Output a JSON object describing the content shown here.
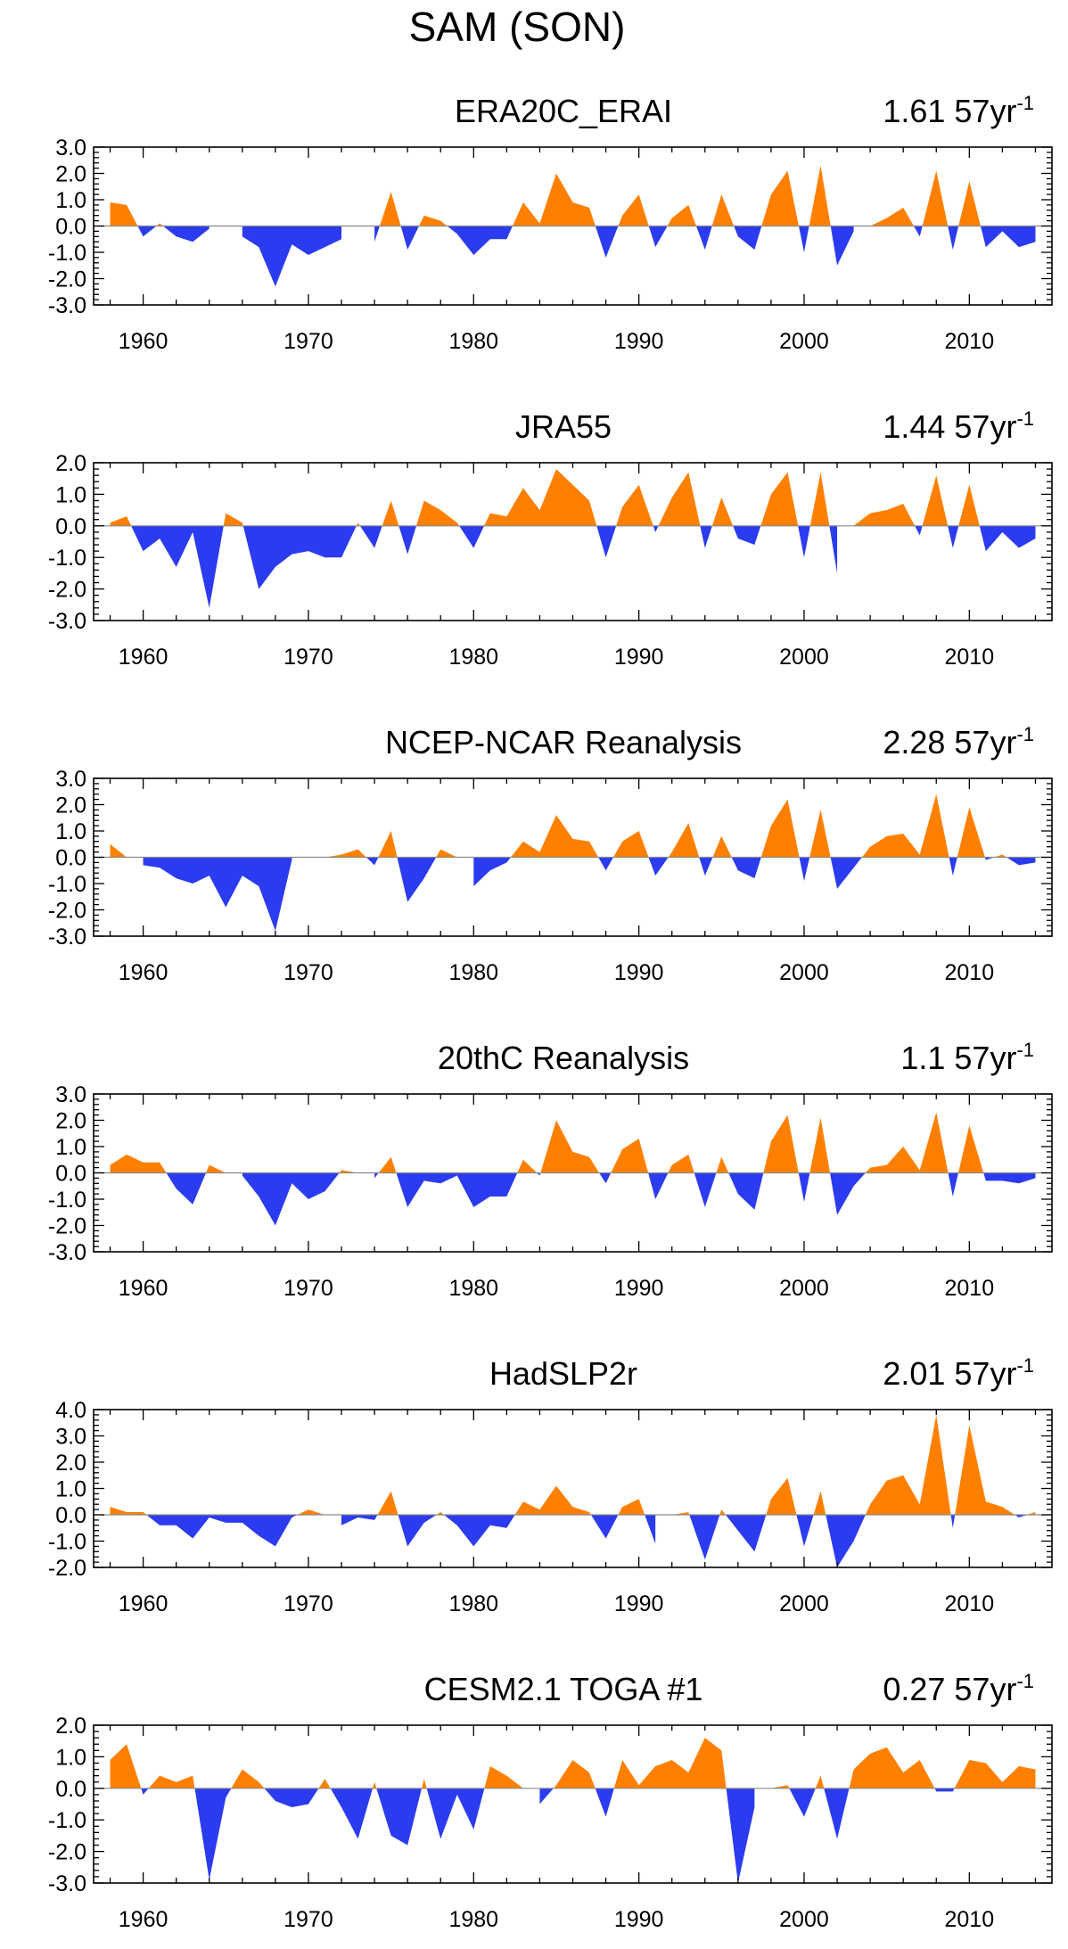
{
  "figure_title": "SAM (SON)",
  "colors": {
    "positive": "#FF8000",
    "negative": "#2B3BF0",
    "axis": "#000000"
  },
  "chart_data": [
    {
      "type": "area",
      "title": "ERA20C_ERAI",
      "trend_value": "1.61 57yr",
      "trend_exponent": "-1",
      "x": [
        1958,
        1959,
        1960,
        1961,
        1962,
        1963,
        1964,
        1965,
        1966,
        1967,
        1968,
        1969,
        1970,
        1971,
        1972,
        1973,
        1974,
        1975,
        1976,
        1977,
        1978,
        1979,
        1980,
        1981,
        1982,
        1983,
        1984,
        1985,
        1986,
        1987,
        1988,
        1989,
        1990,
        1991,
        1992,
        1993,
        1994,
        1995,
        1996,
        1997,
        1998,
        1999,
        2000,
        2001,
        2002,
        2003,
        2004,
        2005,
        2006,
        2007,
        2008,
        2009,
        2010,
        2011,
        2012,
        2013,
        2014
      ],
      "values": [
        0.9,
        0.8,
        -0.4,
        0.1,
        -0.4,
        -0.6,
        -0.1,
        0.0,
        -0.4,
        -0.8,
        -2.3,
        -0.7,
        -1.1,
        -0.8,
        -0.5,
        0.0,
        -0.6,
        1.3,
        -0.9,
        0.4,
        0.2,
        -0.3,
        -1.1,
        -0.5,
        -0.5,
        0.9,
        0.1,
        2.0,
        0.9,
        0.7,
        -1.2,
        0.4,
        1.2,
        -0.8,
        0.3,
        0.8,
        -0.9,
        1.2,
        -0.4,
        -0.9,
        1.2,
        2.1,
        -1.0,
        2.3,
        -1.5,
        -0.2,
        0.0,
        0.3,
        0.7,
        -0.4,
        2.1,
        -0.9,
        1.7,
        -0.8,
        -0.2,
        -0.8,
        -0.6
      ],
      "ylim": [
        -3.0,
        3.0
      ],
      "yticks": [
        "3.0",
        "2.0",
        "1.0",
        "0.0",
        "-1.0",
        "-2.0",
        "-3.0"
      ],
      "xlim": [
        1957,
        2015
      ],
      "xticks": [
        "1960",
        "1970",
        "1980",
        "1990",
        "2000",
        "2010"
      ]
    },
    {
      "type": "area",
      "title": "JRA55",
      "trend_value": "1.44 57yr",
      "trend_exponent": "-1",
      "x": [
        1958,
        1959,
        1960,
        1961,
        1962,
        1963,
        1964,
        1965,
        1966,
        1967,
        1968,
        1969,
        1970,
        1971,
        1972,
        1973,
        1974,
        1975,
        1976,
        1977,
        1978,
        1979,
        1980,
        1981,
        1982,
        1983,
        1984,
        1985,
        1986,
        1987,
        1988,
        1989,
        1990,
        1991,
        1992,
        1993,
        1994,
        1995,
        1996,
        1997,
        1998,
        1999,
        2000,
        2001,
        2002,
        2003,
        2004,
        2005,
        2006,
        2007,
        2008,
        2009,
        2010,
        2011,
        2012,
        2013,
        2014
      ],
      "values": [
        0.1,
        0.3,
        -0.8,
        -0.4,
        -1.3,
        -0.2,
        -2.6,
        0.4,
        0.1,
        -2.0,
        -1.3,
        -0.9,
        -0.8,
        -1.0,
        -1.0,
        0.1,
        -0.7,
        0.8,
        -0.9,
        0.8,
        0.5,
        0.1,
        -0.7,
        0.4,
        0.3,
        1.2,
        0.5,
        1.8,
        1.3,
        0.8,
        -1.0,
        0.6,
        1.3,
        -0.2,
        0.9,
        1.7,
        -0.7,
        0.9,
        -0.4,
        -0.6,
        1.0,
        1.7,
        -1.0,
        1.7,
        -1.5,
        0.0,
        0.4,
        0.5,
        0.7,
        -0.3,
        1.6,
        -0.7,
        1.3,
        -0.8,
        -0.2,
        -0.7,
        -0.4
      ],
      "ylim": [
        -3.0,
        2.0
      ],
      "yticks": [
        "2.0",
        "1.0",
        "0.0",
        "-1.0",
        "-2.0",
        "-3.0"
      ],
      "xlim": [
        1957,
        2015
      ],
      "xticks": [
        "1960",
        "1970",
        "1980",
        "1990",
        "2000",
        "2010"
      ]
    },
    {
      "type": "area",
      "title": "NCEP-NCAR Reanalysis",
      "trend_value": "2.28 57yr",
      "trend_exponent": "-1",
      "x": [
        1958,
        1959,
        1960,
        1961,
        1962,
        1963,
        1964,
        1965,
        1966,
        1967,
        1968,
        1969,
        1970,
        1971,
        1972,
        1973,
        1974,
        1975,
        1976,
        1977,
        1978,
        1979,
        1980,
        1981,
        1982,
        1983,
        1984,
        1985,
        1986,
        1987,
        1988,
        1989,
        1990,
        1991,
        1992,
        1993,
        1994,
        1995,
        1996,
        1997,
        1998,
        1999,
        2000,
        2001,
        2002,
        2003,
        2004,
        2005,
        2006,
        2007,
        2008,
        2009,
        2010,
        2011,
        2012,
        2013,
        2014
      ],
      "values": [
        0.5,
        0.0,
        -0.3,
        -0.4,
        -0.8,
        -1.0,
        -0.7,
        -1.9,
        -0.7,
        -1.1,
        -2.8,
        -0.1,
        0.0,
        0.0,
        0.1,
        0.3,
        -0.3,
        1.0,
        -1.7,
        -0.8,
        0.3,
        0.0,
        -1.1,
        -0.5,
        -0.2,
        0.6,
        0.2,
        1.6,
        0.7,
        0.6,
        -0.5,
        0.6,
        1.0,
        -0.7,
        0.2,
        1.3,
        -0.7,
        0.8,
        -0.5,
        -0.8,
        1.2,
        2.2,
        -0.9,
        1.8,
        -1.2,
        -0.4,
        0.4,
        0.8,
        0.9,
        0.1,
        2.4,
        -0.7,
        1.9,
        -0.1,
        0.1,
        -0.3,
        -0.2
      ],
      "ylim": [
        -3.0,
        3.0
      ],
      "yticks": [
        "3.0",
        "2.0",
        "1.0",
        "0.0",
        "-1.0",
        "-2.0",
        "-3.0"
      ],
      "xlim": [
        1957,
        2015
      ],
      "xticks": [
        "1960",
        "1970",
        "1980",
        "1990",
        "2000",
        "2010"
      ]
    },
    {
      "type": "area",
      "title": "20thC Reanalysis",
      "trend_value": "1.1 57yr",
      "trend_exponent": "-1",
      "x": [
        1958,
        1959,
        1960,
        1961,
        1962,
        1963,
        1964,
        1965,
        1966,
        1967,
        1968,
        1969,
        1970,
        1971,
        1972,
        1973,
        1974,
        1975,
        1976,
        1977,
        1978,
        1979,
        1980,
        1981,
        1982,
        1983,
        1984,
        1985,
        1986,
        1987,
        1988,
        1989,
        1990,
        1991,
        1992,
        1993,
        1994,
        1995,
        1996,
        1997,
        1998,
        1999,
        2000,
        2001,
        2002,
        2003,
        2004,
        2005,
        2006,
        2007,
        2008,
        2009,
        2010,
        2011,
        2012,
        2013,
        2014
      ],
      "values": [
        0.3,
        0.7,
        0.4,
        0.4,
        -0.6,
        -1.2,
        0.3,
        0.0,
        -0.1,
        -0.9,
        -2.0,
        -0.4,
        -1.0,
        -0.7,
        0.1,
        0.0,
        -0.2,
        0.6,
        -1.3,
        -0.3,
        -0.4,
        -0.1,
        -1.3,
        -0.9,
        -0.9,
        0.5,
        -0.1,
        2.0,
        0.8,
        0.6,
        -0.4,
        0.9,
        1.3,
        -1.0,
        0.3,
        0.7,
        -1.3,
        0.6,
        -0.8,
        -1.4,
        1.2,
        2.2,
        -1.1,
        2.1,
        -1.6,
        -0.5,
        0.2,
        0.3,
        1.0,
        0.1,
        2.3,
        -0.9,
        1.8,
        -0.3,
        -0.3,
        -0.4,
        -0.2
      ],
      "ylim": [
        -3.0,
        3.0
      ],
      "yticks": [
        "3.0",
        "2.0",
        "1.0",
        "0.0",
        "-1.0",
        "-2.0",
        "-3.0"
      ],
      "xlim": [
        1957,
        2015
      ],
      "xticks": [
        "1960",
        "1970",
        "1980",
        "1990",
        "2000",
        "2010"
      ]
    },
    {
      "type": "area",
      "title": "HadSLP2r",
      "trend_value": "2.01 57yr",
      "trend_exponent": "-1",
      "x": [
        1958,
        1959,
        1960,
        1961,
        1962,
        1963,
        1964,
        1965,
        1966,
        1967,
        1968,
        1969,
        1970,
        1971,
        1972,
        1973,
        1974,
        1975,
        1976,
        1977,
        1978,
        1979,
        1980,
        1981,
        1982,
        1983,
        1984,
        1985,
        1986,
        1987,
        1988,
        1989,
        1990,
        1991,
        1992,
        1993,
        1994,
        1995,
        1996,
        1997,
        1998,
        1999,
        2000,
        2001,
        2002,
        2003,
        2004,
        2005,
        2006,
        2007,
        2008,
        2009,
        2010,
        2011,
        2012,
        2013,
        2014
      ],
      "values": [
        0.3,
        0.1,
        0.1,
        -0.4,
        -0.4,
        -0.9,
        -0.1,
        -0.3,
        -0.3,
        -0.8,
        -1.2,
        -0.1,
        0.2,
        0.0,
        -0.4,
        -0.1,
        -0.2,
        0.9,
        -1.2,
        -0.3,
        0.1,
        -0.4,
        -1.2,
        -0.4,
        -0.5,
        0.5,
        0.2,
        1.1,
        0.3,
        0.1,
        -0.9,
        0.3,
        0.6,
        -1.1,
        0.0,
        0.1,
        -1.7,
        0.2,
        -0.6,
        -1.4,
        0.6,
        1.4,
        -1.2,
        0.9,
        -2.0,
        -1.0,
        0.4,
        1.3,
        1.5,
        0.4,
        3.8,
        -0.5,
        3.4,
        0.5,
        0.3,
        -0.1,
        0.1
      ],
      "ylim": [
        -2.0,
        4.0
      ],
      "yticks": [
        "4.0",
        "3.0",
        "2.0",
        "1.0",
        "0.0",
        "-1.0",
        "-2.0"
      ],
      "xlim": [
        1957,
        2015
      ],
      "xticks": [
        "1960",
        "1970",
        "1980",
        "1990",
        "2000",
        "2010"
      ]
    },
    {
      "type": "area",
      "title": "CESM2.1 TOGA #1",
      "trend_value": "0.27 57yr",
      "trend_exponent": "-1",
      "x": [
        1958,
        1959,
        1960,
        1961,
        1962,
        1963,
        1964,
        1965,
        1966,
        1967,
        1968,
        1969,
        1970,
        1971,
        1972,
        1973,
        1974,
        1975,
        1976,
        1977,
        1978,
        1979,
        1980,
        1981,
        1982,
        1983,
        1984,
        1985,
        1986,
        1987,
        1988,
        1989,
        1990,
        1991,
        1992,
        1993,
        1994,
        1995,
        1996,
        1997,
        1998,
        1999,
        2000,
        2001,
        2002,
        2003,
        2004,
        2005,
        2006,
        2007,
        2008,
        2009,
        2010,
        2011,
        2012,
        2013,
        2014
      ],
      "values": [
        0.9,
        1.4,
        -0.2,
        0.4,
        0.2,
        0.4,
        -2.9,
        -0.3,
        0.6,
        0.2,
        -0.4,
        -0.6,
        -0.5,
        0.3,
        -0.6,
        -1.6,
        0.2,
        -1.5,
        -1.8,
        0.3,
        -1.6,
        -0.2,
        -1.3,
        0.7,
        0.4,
        0.0,
        -0.5,
        0.1,
        0.9,
        0.5,
        -0.9,
        0.9,
        0.1,
        0.7,
        0.9,
        0.5,
        1.6,
        1.2,
        -3.0,
        -0.6,
        0.0,
        0.1,
        -0.9,
        0.4,
        -1.6,
        0.6,
        1.1,
        1.3,
        0.5,
        0.9,
        -0.1,
        -0.1,
        0.9,
        0.8,
        0.2,
        0.7,
        0.6
      ],
      "ylim": [
        -3.0,
        2.0
      ],
      "yticks": [
        "2.0",
        "1.0",
        "0.0",
        "-1.0",
        "-2.0",
        "-3.0"
      ],
      "xlim": [
        1957,
        2015
      ],
      "xticks": [
        "1960",
        "1970",
        "1980",
        "1990",
        "2000",
        "2010"
      ]
    }
  ]
}
